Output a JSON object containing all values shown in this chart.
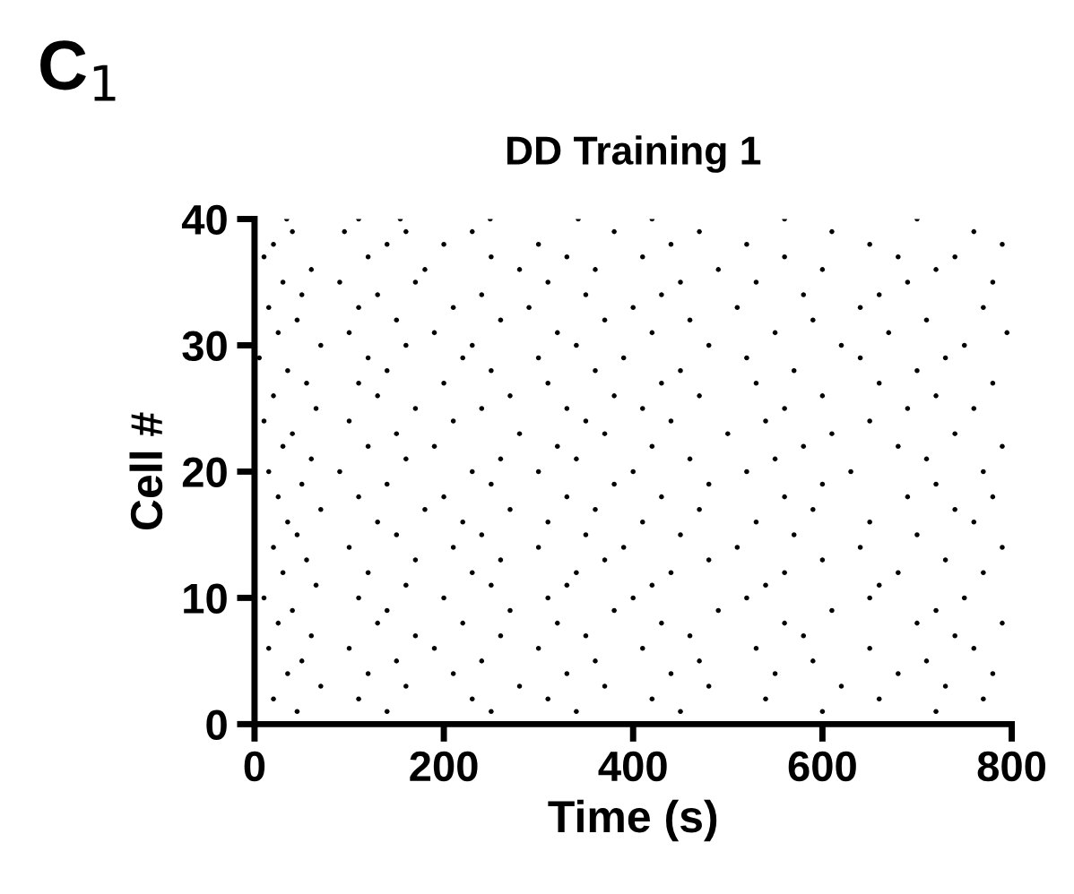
{
  "chart_data": {
    "type": "scatter",
    "title": "DD Training 1",
    "xlabel": "Time (s)",
    "ylabel": "Cell #",
    "annotations": [
      "C$_{1}$"
    ],
    "xlim": [
      0,
      800
    ],
    "ylim": [
      0,
      40
    ],
    "xticks": [
      0,
      200,
      400,
      600,
      800
    ],
    "yticks": [
      0,
      10,
      20,
      30,
      40
    ],
    "grid": false,
    "legend": false,
    "marker": "circle",
    "series": [
      {
        "color": "#000000",
        "x": [
          34,
          110,
          154,
          249,
          342,
          420,
          560,
          700,
          40,
          95,
          160,
          230,
          380,
          470,
          610,
          760,
          20,
          140,
          200,
          300,
          440,
          520,
          650,
          790,
          10,
          120,
          250,
          330,
          410,
          560,
          680,
          740,
          60,
          180,
          280,
          360,
          490,
          600,
          720,
          30,
          90,
          170,
          310,
          450,
          530,
          690,
          780,
          50,
          130,
          240,
          350,
          430,
          580,
          660,
          15,
          110,
          210,
          290,
          400,
          510,
          640,
          770,
          45,
          150,
          260,
          370,
          460,
          590,
          710,
          25,
          100,
          190,
          320,
          420,
          550,
          670,
          795,
          70,
          160,
          230,
          340,
          480,
          620,
          750,
          5,
          120,
          220,
          300,
          390,
          520,
          640,
          730,
          35,
          140,
          250,
          360,
          450,
          570,
          700,
          55,
          110,
          200,
          310,
          430,
          530,
          660,
          780,
          20,
          130,
          270,
          380,
          470,
          600,
          720,
          65,
          170,
          240,
          330,
          410,
          560,
          690,
          760,
          10,
          100,
          210,
          350,
          440,
          540,
          650,
          40,
          150,
          280,
          370,
          500,
          610,
          740,
          30,
          120,
          190,
          320,
          420,
          580,
          680,
          790,
          60,
          160,
          260,
          340,
          460,
          550,
          710,
          15,
          90,
          230,
          300,
          400,
          520,
          630,
          770,
          50,
          140,
          250,
          380,
          480,
          600,
          720,
          25,
          110,
          200,
          330,
          430,
          560,
          690,
          780,
          70,
          180,
          270,
          360,
          470,
          590,
          740,
          35,
          130,
          220,
          310,
          410,
          530,
          650,
          760,
          45,
          150,
          240,
          350,
          450,
          570,
          700,
          20,
          100,
          210,
          300,
          390,
          510,
          640,
          790,
          55,
          170,
          260,
          370,
          480,
          600,
          730,
          30,
          120,
          230,
          340,
          440,
          560,
          680,
          770,
          65,
          160,
          250,
          330,
          420,
          540,
          660,
          10,
          110,
          200,
          310,
          400,
          520,
          650,
          750,
          40,
          140,
          270,
          380,
          490,
          610,
          720,
          25,
          130,
          220,
          320,
          430,
          560,
          700,
          790,
          60,
          170,
          260,
          350,
          460,
          580,
          740,
          15,
          100,
          190,
          300,
          410,
          530,
          650,
          760,
          50,
          150,
          240,
          360,
          470,
          590,
          710,
          35,
          120,
          210,
          330,
          440,
          550,
          680,
          780,
          70,
          160,
          280,
          370,
          480,
          620,
          730,
          20,
          110,
          230,
          310,
          420,
          540,
          660,
          770,
          45,
          140,
          250,
          340,
          450,
          600,
          720
        ],
        "values": [
          40,
          40,
          40,
          40,
          40,
          40,
          40,
          40,
          39,
          39,
          39,
          39,
          39,
          39,
          39,
          39,
          38,
          38,
          38,
          38,
          38,
          38,
          38,
          38,
          37,
          37,
          37,
          37,
          37,
          37,
          37,
          37,
          36,
          36,
          36,
          36,
          36,
          36,
          36,
          35,
          35,
          35,
          35,
          35,
          35,
          35,
          35,
          34,
          34,
          34,
          34,
          34,
          34,
          34,
          33,
          33,
          33,
          33,
          33,
          33,
          33,
          33,
          32,
          32,
          32,
          32,
          32,
          32,
          32,
          31,
          31,
          31,
          31,
          31,
          31,
          31,
          31,
          30,
          30,
          30,
          30,
          30,
          30,
          30,
          29,
          29,
          29,
          29,
          29,
          29,
          29,
          29,
          28,
          28,
          28,
          28,
          28,
          28,
          28,
          27,
          27,
          27,
          27,
          27,
          27,
          27,
          27,
          26,
          26,
          26,
          26,
          26,
          26,
          26,
          25,
          25,
          25,
          25,
          25,
          25,
          25,
          25,
          24,
          24,
          24,
          24,
          24,
          24,
          24,
          23,
          23,
          23,
          23,
          23,
          23,
          23,
          22,
          22,
          22,
          22,
          22,
          22,
          22,
          22,
          21,
          21,
          21,
          21,
          21,
          21,
          21,
          20,
          20,
          20,
          20,
          20,
          20,
          20,
          20,
          19,
          19,
          19,
          19,
          19,
          19,
          19,
          18,
          18,
          18,
          18,
          18,
          18,
          18,
          18,
          17,
          17,
          17,
          17,
          17,
          17,
          17,
          16,
          16,
          16,
          16,
          16,
          16,
          16,
          16,
          15,
          15,
          15,
          15,
          15,
          15,
          15,
          14,
          14,
          14,
          14,
          14,
          14,
          14,
          14,
          13,
          13,
          13,
          13,
          13,
          13,
          13,
          12,
          12,
          12,
          12,
          12,
          12,
          12,
          12,
          11,
          11,
          11,
          11,
          11,
          11,
          11,
          10,
          10,
          10,
          10,
          10,
          10,
          10,
          10,
          9,
          9,
          9,
          9,
          9,
          9,
          9,
          8,
          8,
          8,
          8,
          8,
          8,
          8,
          8,
          7,
          7,
          7,
          7,
          7,
          7,
          7,
          6,
          6,
          6,
          6,
          6,
          6,
          6,
          6,
          5,
          5,
          5,
          5,
          5,
          5,
          5,
          4,
          4,
          4,
          4,
          4,
          4,
          4,
          4,
          3,
          3,
          3,
          3,
          3,
          3,
          3,
          2,
          2,
          2,
          2,
          2,
          2,
          2,
          2,
          1,
          1,
          1,
          1,
          1,
          1,
          1
        ]
      }
    ]
  }
}
